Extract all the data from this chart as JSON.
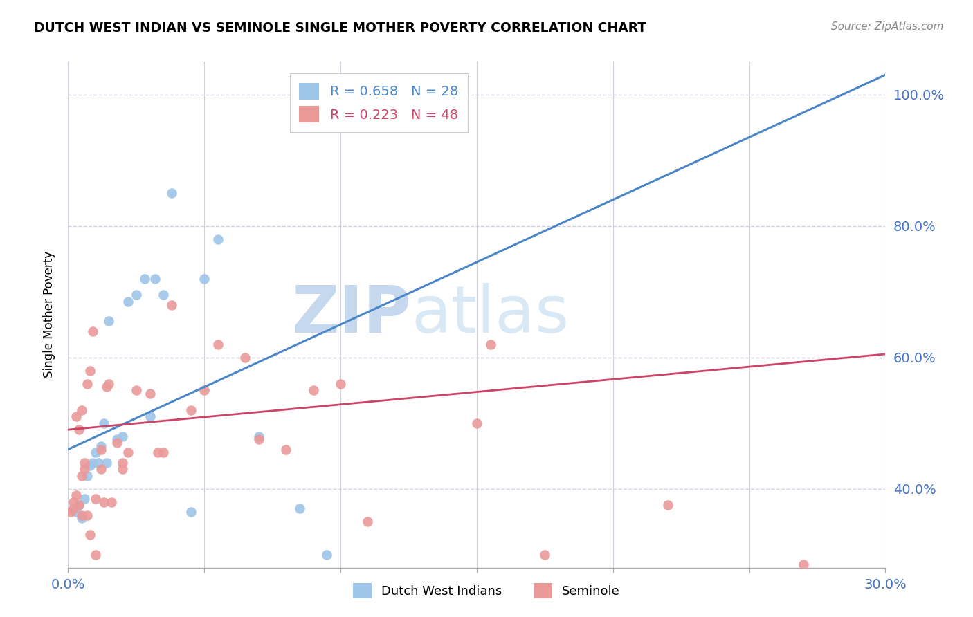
{
  "title": "DUTCH WEST INDIAN VS SEMINOLE SINGLE MOTHER POVERTY CORRELATION CHART",
  "source": "Source: ZipAtlas.com",
  "ylabel": "Single Mother Poverty",
  "xlim": [
    0.0,
    0.3
  ],
  "ylim": [
    0.28,
    1.05
  ],
  "xticks": [
    0.0,
    0.05,
    0.1,
    0.15,
    0.2,
    0.25,
    0.3
  ],
  "xtick_labels": [
    "0.0%",
    "",
    "",
    "",
    "",
    "",
    "30.0%"
  ],
  "yticks": [
    0.4,
    0.6,
    0.8,
    1.0
  ],
  "ytick_labels": [
    "40.0%",
    "60.0%",
    "80.0%",
    "100.0%"
  ],
  "blue_R": 0.658,
  "blue_N": 28,
  "pink_R": 0.223,
  "pink_N": 48,
  "blue_color": "#9fc5e8",
  "pink_color": "#ea9999",
  "blue_line_color": "#4a86c8",
  "pink_line_color": "#cc4466",
  "axis_color": "#4472c4",
  "grid_color": "#d0d0e0",
  "watermark_zip": "ZIP",
  "watermark_atlas": "atlas",
  "watermark_color": "#dce9f5",
  "blue_scatter_x": [
    0.003,
    0.004,
    0.005,
    0.006,
    0.007,
    0.008,
    0.009,
    0.01,
    0.011,
    0.012,
    0.013,
    0.014,
    0.015,
    0.018,
    0.02,
    0.022,
    0.025,
    0.028,
    0.03,
    0.032,
    0.035,
    0.038,
    0.045,
    0.05,
    0.055,
    0.07,
    0.085,
    0.095
  ],
  "blue_scatter_y": [
    0.365,
    0.375,
    0.355,
    0.385,
    0.42,
    0.435,
    0.44,
    0.455,
    0.44,
    0.465,
    0.5,
    0.44,
    0.655,
    0.475,
    0.48,
    0.685,
    0.695,
    0.72,
    0.51,
    0.72,
    0.695,
    0.85,
    0.365,
    0.72,
    0.78,
    0.48,
    0.37,
    0.3
  ],
  "pink_scatter_x": [
    0.001,
    0.002,
    0.002,
    0.003,
    0.003,
    0.004,
    0.004,
    0.005,
    0.005,
    0.005,
    0.006,
    0.006,
    0.007,
    0.007,
    0.008,
    0.008,
    0.009,
    0.01,
    0.01,
    0.012,
    0.012,
    0.013,
    0.014,
    0.015,
    0.016,
    0.018,
    0.02,
    0.02,
    0.022,
    0.025,
    0.03,
    0.033,
    0.035,
    0.038,
    0.045,
    0.05,
    0.055,
    0.065,
    0.07,
    0.08,
    0.09,
    0.1,
    0.11,
    0.15,
    0.155,
    0.175,
    0.22,
    0.27
  ],
  "pink_scatter_y": [
    0.365,
    0.37,
    0.38,
    0.39,
    0.51,
    0.49,
    0.375,
    0.36,
    0.42,
    0.52,
    0.43,
    0.44,
    0.36,
    0.56,
    0.58,
    0.33,
    0.64,
    0.3,
    0.385,
    0.43,
    0.46,
    0.38,
    0.555,
    0.56,
    0.38,
    0.47,
    0.43,
    0.44,
    0.455,
    0.55,
    0.545,
    0.455,
    0.455,
    0.68,
    0.52,
    0.55,
    0.62,
    0.6,
    0.475,
    0.46,
    0.55,
    0.56,
    0.35,
    0.5,
    0.62,
    0.3,
    0.375,
    0.285
  ]
}
